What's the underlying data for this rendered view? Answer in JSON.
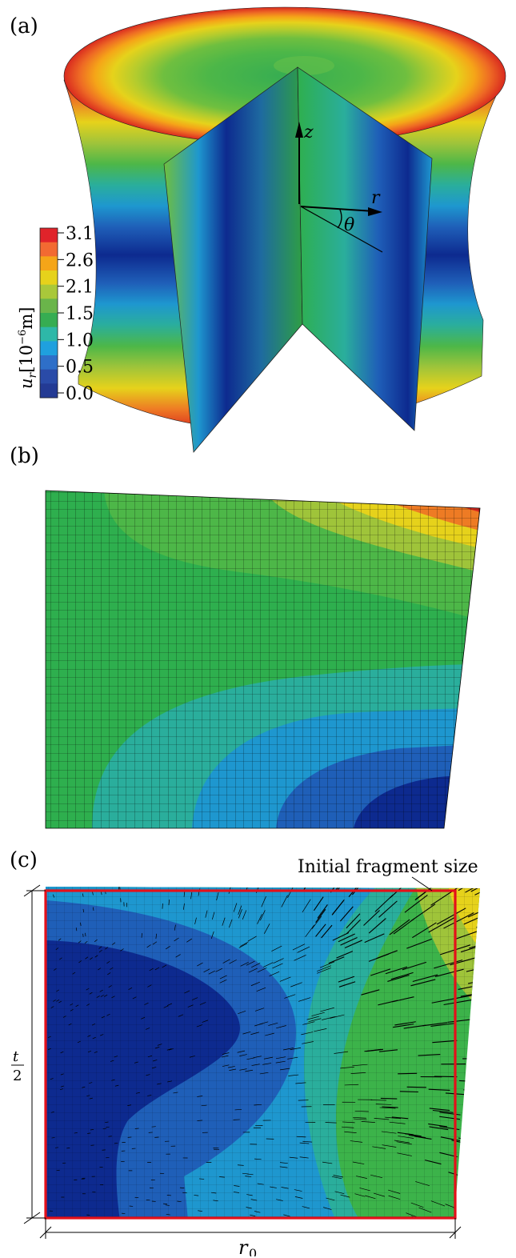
{
  "panels": {
    "a": {
      "label": "(a)"
    },
    "b": {
      "label": "(b)"
    },
    "c": {
      "label": "(c)"
    }
  },
  "colorbar": {
    "title_var": "u",
    "title_sub": "r",
    "title_unit_pre": "[10",
    "title_exp": "−6",
    "title_unit_post": "m]",
    "ticks": [
      "3.1",
      "2.6",
      "2.1",
      "1.5",
      "1.0",
      "0.5",
      "0.0"
    ],
    "colors": [
      "#e0232a",
      "#f26a32",
      "#f5a518",
      "#e6d21b",
      "#a9c83a",
      "#6ab54a",
      "#36ad52",
      "#2eb8a8",
      "#1fa0de",
      "#2e6fc8",
      "#2a4ba8",
      "#233a94"
    ]
  },
  "axes_labels": {
    "z": "z",
    "r": "r",
    "theta": "θ"
  },
  "annotation": {
    "fragment": "Initial fragment size"
  },
  "dimensions": {
    "height_num": "t",
    "height_den": "2",
    "width_var": "r",
    "width_sub": "0"
  },
  "palette": {
    "red": "#d92a1f",
    "orange": "#ee7b24",
    "yellow": "#e6d21b",
    "ygreen": "#9fc43a",
    "green": "#4db748",
    "dgreen": "#2e9e44",
    "teal": "#2aae9c",
    "cyan": "#1e97cf",
    "blue": "#1f5fb8",
    "navy": "#0d2a8f",
    "outline": "#e4101a"
  }
}
